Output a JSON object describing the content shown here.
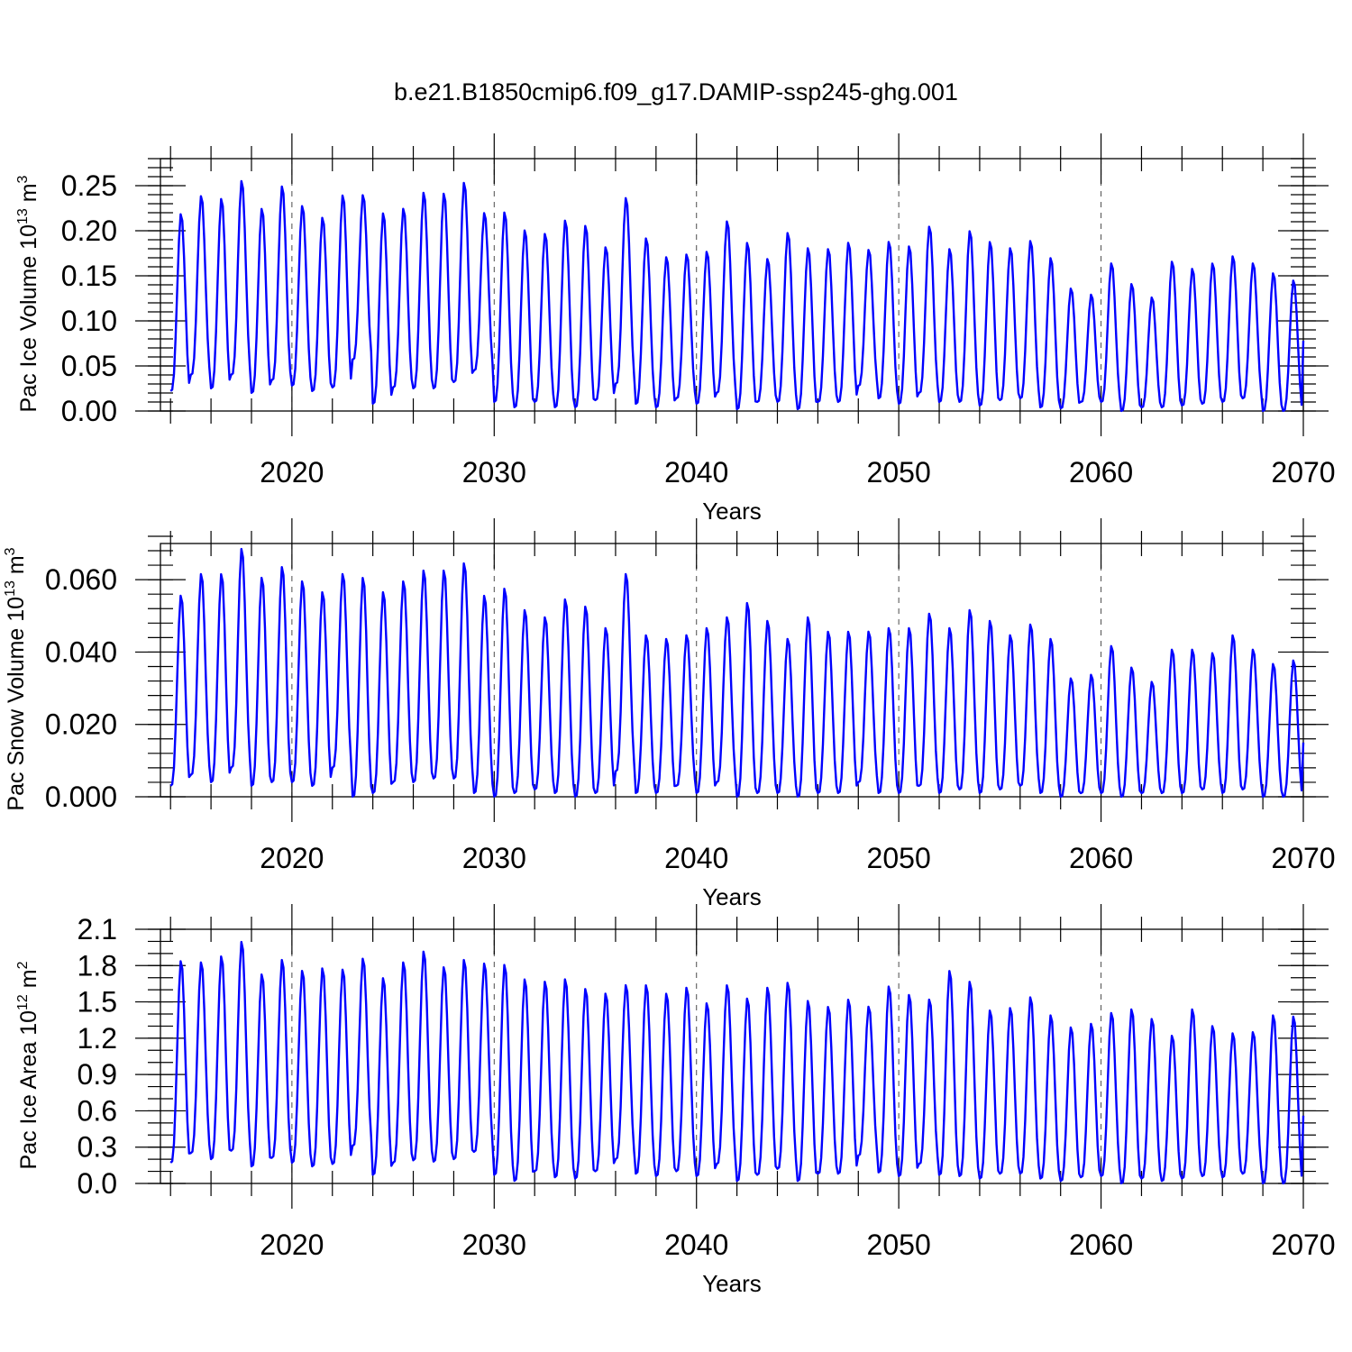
{
  "title": "b.e21.B1850cmip6.f09_g17.DAMIP-ssp245-ghg.001",
  "colors": {
    "series": "#0000ff",
    "axes": "#000000",
    "background": "#ffffff"
  },
  "chart_data": [
    {
      "type": "line",
      "ylabel_main": "Pac Ice Volume 10",
      "ylabel_exp": "13",
      "ylabel_unit": " m",
      "ylabel_unit_exp": "3",
      "xlabel": "Years",
      "xlim": [
        2013.5,
        2070
      ],
      "ylim": [
        0,
        0.28
      ],
      "xticks": [
        "2020",
        "2030",
        "2040",
        "2050",
        "2060",
        "2070"
      ],
      "xtick_values": [
        2020,
        2030,
        2040,
        2050,
        2060,
        2070
      ],
      "yticks": [
        "0.00",
        "0.05",
        "0.10",
        "0.15",
        "0.20",
        "0.25"
      ],
      "ytick_values": [
        0,
        0.05,
        0.1,
        0.15,
        0.2,
        0.25
      ],
      "ytick_minor": 0.01,
      "series": [
        {
          "name": "Pac Ice Volume",
          "start_year": 2014.0,
          "annual_max": [
            0.22,
            0.24,
            0.237,
            0.257,
            0.226,
            0.251,
            0.229,
            0.216,
            0.241,
            0.241,
            0.221,
            0.226,
            0.244,
            0.243,
            0.255,
            0.221,
            0.222,
            0.202,
            0.198,
            0.213,
            0.207,
            0.183,
            0.238,
            0.193,
            0.172,
            0.175,
            0.178,
            0.212,
            0.188,
            0.17,
            0.199,
            0.182,
            0.181,
            0.188,
            0.18,
            0.189,
            0.184,
            0.206,
            0.181,
            0.201,
            0.189,
            0.182,
            0.19,
            0.171,
            0.137,
            0.13,
            0.165,
            0.142,
            0.127,
            0.167,
            0.159,
            0.165,
            0.173,
            0.165,
            0.154,
            0.146
          ],
          "annual_min": [
            0.022,
            0.04,
            0.025,
            0.04,
            0.02,
            0.034,
            0.028,
            0.022,
            0.026,
            0.057,
            0.008,
            0.026,
            0.025,
            0.025,
            0.032,
            0.045,
            0.01,
            0.004,
            0.01,
            0.004,
            0.004,
            0.012,
            0.03,
            0.008,
            0.004,
            0.014,
            0.008,
            0.02,
            0.002,
            0.01,
            0.01,
            0.002,
            0.01,
            0.01,
            0.028,
            0.014,
            0.008,
            0.02,
            0.01,
            0.01,
            0.006,
            0.012,
            0.014,
            0.004,
            0.003,
            0.01,
            0.01,
            0.0,
            0.004,
            0.004,
            0.006,
            0.008,
            0.01,
            0.014,
            0.0,
            0.0
          ],
          "end_value": 0.078
        }
      ]
    },
    {
      "type": "line",
      "ylabel_main": "Pac Snow Volume 10",
      "ylabel_exp": "13",
      "ylabel_unit": " m",
      "ylabel_unit_exp": "3",
      "xlabel": "Years",
      "xlim": [
        2013.5,
        2070
      ],
      "ylim": [
        0,
        0.07
      ],
      "xticks": [
        "2020",
        "2030",
        "2040",
        "2050",
        "2060",
        "2070"
      ],
      "xtick_values": [
        2020,
        2030,
        2040,
        2050,
        2060,
        2070
      ],
      "yticks": [
        "0.000",
        "0.020",
        "0.040",
        "0.060"
      ],
      "ytick_values": [
        0,
        0.02,
        0.04,
        0.06
      ],
      "ytick_minor": 0.004,
      "series": [
        {
          "name": "Pac Snow Volume",
          "start_year": 2014.0,
          "annual_max": [
            0.056,
            0.062,
            0.062,
            0.069,
            0.061,
            0.064,
            0.06,
            0.057,
            0.062,
            0.061,
            0.057,
            0.06,
            0.063,
            0.063,
            0.065,
            0.056,
            0.058,
            0.052,
            0.05,
            0.055,
            0.053,
            0.047,
            0.062,
            0.045,
            0.044,
            0.045,
            0.047,
            0.05,
            0.054,
            0.049,
            0.044,
            0.05,
            0.046,
            0.046,
            0.046,
            0.047,
            0.047,
            0.051,
            0.047,
            0.052,
            0.049,
            0.045,
            0.048,
            0.044,
            0.033,
            0.034,
            0.042,
            0.036,
            0.032,
            0.041,
            0.041,
            0.04,
            0.045,
            0.041,
            0.037,
            0.038
          ],
          "annual_min": [
            0.003,
            0.006,
            0.004,
            0.008,
            0.003,
            0.004,
            0.004,
            0.003,
            0.008,
            0.0,
            0.001,
            0.004,
            0.004,
            0.005,
            0.005,
            0.001,
            0.0,
            0.001,
            0.002,
            0.001,
            0.0,
            0.001,
            0.007,
            0.001,
            0.001,
            0.003,
            0.001,
            0.004,
            0.0,
            0.001,
            0.001,
            0.0,
            0.001,
            0.001,
            0.004,
            0.001,
            0.001,
            0.003,
            0.001,
            0.002,
            0.001,
            0.002,
            0.003,
            0.001,
            0.0,
            0.001,
            0.001,
            0.0,
            0.001,
            0.001,
            0.001,
            0.002,
            0.001,
            0.002,
            0.0,
            0.0
          ],
          "end_value": 0.015
        }
      ]
    },
    {
      "type": "line",
      "ylabel_main": "Pac Ice Area 10",
      "ylabel_exp": "12",
      "ylabel_unit": " m",
      "ylabel_unit_exp": "2",
      "xlabel": "Years",
      "xlim": [
        2013.5,
        2070
      ],
      "ylim": [
        0,
        2.1
      ],
      "xticks": [
        "2020",
        "2030",
        "2040",
        "2050",
        "2060",
        "2070"
      ],
      "xtick_values": [
        2020,
        2030,
        2040,
        2050,
        2060,
        2070
      ],
      "yticks": [
        "0.0",
        "0.3",
        "0.6",
        "0.9",
        "1.2",
        "1.5",
        "1.8",
        "2.1"
      ],
      "ytick_values": [
        0,
        0.3,
        0.6,
        0.9,
        1.2,
        1.5,
        1.8,
        2.1
      ],
      "ytick_minor": 0.1,
      "series": [
        {
          "name": "Pac Ice Area",
          "start_year": 2014.0,
          "annual_max": [
            1.85,
            1.84,
            1.89,
            2.01,
            1.74,
            1.86,
            1.77,
            1.79,
            1.78,
            1.87,
            1.71,
            1.84,
            1.93,
            1.8,
            1.86,
            1.83,
            1.82,
            1.7,
            1.68,
            1.7,
            1.62,
            1.58,
            1.65,
            1.65,
            1.58,
            1.63,
            1.5,
            1.65,
            1.54,
            1.63,
            1.67,
            1.52,
            1.47,
            1.53,
            1.47,
            1.64,
            1.57,
            1.53,
            1.77,
            1.68,
            1.44,
            1.46,
            1.55,
            1.4,
            1.3,
            1.33,
            1.42,
            1.45,
            1.37,
            1.23,
            1.45,
            1.31,
            1.25,
            1.26,
            1.4,
            1.39
          ],
          "annual_min": [
            0.17,
            0.25,
            0.2,
            0.27,
            0.14,
            0.21,
            0.17,
            0.14,
            0.16,
            0.31,
            0.07,
            0.17,
            0.19,
            0.18,
            0.2,
            0.26,
            0.07,
            0.02,
            0.1,
            0.05,
            0.04,
            0.1,
            0.2,
            0.08,
            0.06,
            0.1,
            0.06,
            0.16,
            0.02,
            0.07,
            0.12,
            0.02,
            0.08,
            0.08,
            0.23,
            0.09,
            0.06,
            0.16,
            0.07,
            0.06,
            0.04,
            0.08,
            0.08,
            0.04,
            0.02,
            0.05,
            0.06,
            0.0,
            0.04,
            0.02,
            0.04,
            0.06,
            0.05,
            0.08,
            0.0,
            0.0
          ],
          "end_value": 0.56
        }
      ]
    }
  ]
}
